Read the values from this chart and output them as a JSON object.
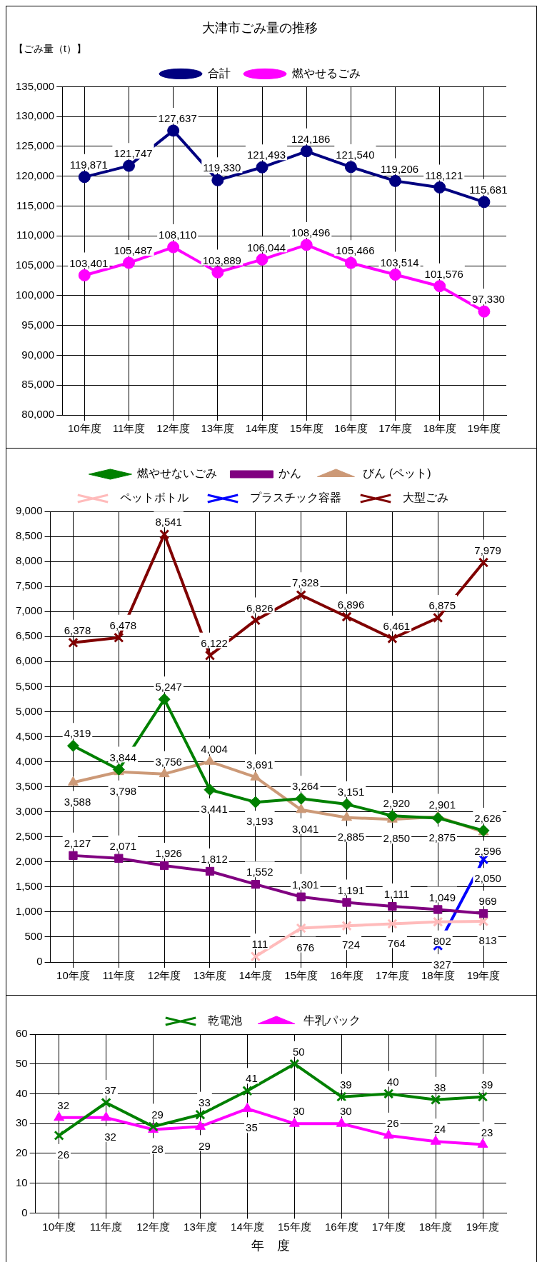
{
  "chart_data": [
    {
      "type": "line",
      "title": "大津市ごみ量の推移",
      "ylabel": "【ごみ量（t）】",
      "categories": [
        "10年度",
        "11年度",
        "12年度",
        "13年度",
        "14年度",
        "15年度",
        "16年度",
        "17年度",
        "18年度",
        "19年度"
      ],
      "series": [
        {
          "name": "合計",
          "color": "#000080",
          "marker": "circle",
          "values": [
            119871,
            121747,
            127637,
            119330,
            121493,
            124186,
            121540,
            119206,
            118121,
            115681
          ],
          "value_labels": [
            "119,871",
            "121,747",
            "127,637",
            "119,330",
            "121,493",
            "124,186",
            "121,540",
            "119,206",
            "118,121",
            "115,681"
          ]
        },
        {
          "name": "燃やせるごみ",
          "color": "#ff00ff",
          "marker": "circle",
          "values": [
            103401,
            105487,
            108110,
            103889,
            106044,
            108496,
            105466,
            103514,
            101576,
            97330
          ],
          "value_labels": [
            "103,401",
            "105,487",
            "108,110",
            "103,889",
            "106,044",
            "108,496",
            "105,466",
            "103,514",
            "101,576",
            "97,330"
          ]
        }
      ],
      "ylim": [
        80000,
        135000
      ],
      "yticks": [
        {
          "value": 80000,
          "label": "80,000"
        },
        {
          "value": 85000,
          "label": "85,000"
        },
        {
          "value": 90000,
          "label": "90,000"
        },
        {
          "value": 95000,
          "label": "95,000"
        },
        {
          "value": 100000,
          "label": "100,000"
        },
        {
          "value": 105000,
          "label": "105,000"
        },
        {
          "value": 110000,
          "label": "110,000"
        },
        {
          "value": 115000,
          "label": "115,000"
        },
        {
          "value": 120000,
          "label": "120,000"
        },
        {
          "value": 125000,
          "label": "125,000"
        },
        {
          "value": 130000,
          "label": "130,000"
        },
        {
          "value": 135000,
          "label": "135,000"
        }
      ],
      "grid": true,
      "legend": "top"
    },
    {
      "type": "line",
      "categories": [
        "10年度",
        "11年度",
        "12年度",
        "13年度",
        "14年度",
        "15年度",
        "16年度",
        "17年度",
        "18年度",
        "19年度"
      ],
      "series": [
        {
          "name": "燃やせないごみ",
          "color": "#008000",
          "marker": "diamond",
          "values": [
            4319,
            3844,
            5247,
            3441,
            3193,
            3264,
            3151,
            2920,
            2875,
            2626
          ],
          "value_labels": [
            "4,319",
            "3,844",
            "5,247",
            "3,441",
            "3,193",
            "3,264",
            "3,151",
            "2,920",
            "2,875",
            "2,626"
          ]
        },
        {
          "name": "かん",
          "color": "#800080",
          "marker": "square",
          "values": [
            2127,
            2071,
            1926,
            1812,
            1552,
            1301,
            1191,
            1111,
            1049,
            969
          ],
          "value_labels": [
            "2,127",
            "2,071",
            "1,926",
            "1,812",
            "1,552",
            "1,301",
            "1,191",
            "1,111",
            "1,049",
            "969"
          ]
        },
        {
          "name": "びん (ペット)",
          "color": "#cc9977",
          "marker": "triangle",
          "values": [
            3588,
            3798,
            3756,
            4004,
            3691,
            3041,
            2885,
            2850,
            2901,
            2596
          ],
          "value_labels": [
            "3,588",
            "3,798",
            "3,756",
            "4,004",
            "3,691",
            "3,041",
            "2,885",
            "2,850",
            "2,901",
            "2,596"
          ]
        },
        {
          "name": "ペットボトル",
          "color": "#ffbbbb",
          "marker": "cross",
          "values": [
            null,
            null,
            null,
            null,
            111,
            676,
            724,
            764,
            802,
            813
          ],
          "value_labels": [
            null,
            null,
            null,
            null,
            "111",
            "676",
            "724",
            "764",
            "802",
            "813"
          ]
        },
        {
          "name": "プラスチック容器",
          "color": "#0000ff",
          "marker": "cross",
          "values": [
            null,
            null,
            null,
            null,
            null,
            null,
            null,
            null,
            327,
            2050
          ],
          "value_labels": [
            null,
            null,
            null,
            null,
            null,
            null,
            null,
            null,
            "327",
            "2,050"
          ]
        },
        {
          "name": "大型ごみ",
          "color": "#800000",
          "marker": "cross",
          "values": [
            6378,
            6478,
            8541,
            6122,
            6826,
            7328,
            6896,
            6461,
            6875,
            7979
          ],
          "value_labels": [
            "6,378",
            "6,478",
            "8,541",
            "6,122",
            "6,826",
            "7,328",
            "6,896",
            "6,461",
            "6,875",
            "7,979"
          ]
        }
      ],
      "ylim": [
        0,
        9000
      ],
      "yticks": [
        0,
        500,
        {
          "value": 1000,
          "label": "1,000"
        },
        {
          "value": 1500,
          "label": "1,500"
        },
        {
          "value": 2000,
          "label": "2,000"
        },
        {
          "value": 2500,
          "label": "2,500"
        },
        {
          "value": 3000,
          "label": "3,000"
        },
        {
          "value": 3500,
          "label": "3,500"
        },
        {
          "value": 4000,
          "label": "4,000"
        },
        {
          "value": 4500,
          "label": "4,500"
        },
        {
          "value": 5000,
          "label": "5,000"
        },
        {
          "value": 5500,
          "label": "5,500"
        },
        {
          "value": 6000,
          "label": "6,000"
        },
        {
          "value": 6500,
          "label": "6,500"
        },
        {
          "value": 7000,
          "label": "7,000"
        },
        {
          "value": 7500,
          "label": "7,500"
        },
        {
          "value": 8000,
          "label": "8,000"
        },
        {
          "value": 8500,
          "label": "8,500"
        },
        {
          "value": 9000,
          "label": "9,000"
        }
      ],
      "grid": true,
      "legend": "top"
    },
    {
      "type": "line",
      "xlabel": "年　度",
      "categories": [
        "10年度",
        "11年度",
        "12年度",
        "13年度",
        "14年度",
        "15年度",
        "16年度",
        "17年度",
        "18年度",
        "19年度"
      ],
      "series": [
        {
          "name": "乾電池",
          "color": "#008000",
          "marker": "cross",
          "values": [
            26,
            37,
            29,
            33,
            41,
            50,
            39,
            40,
            38,
            39
          ]
        },
        {
          "name": "牛乳パック",
          "color": "#ff00ff",
          "marker": "triangle",
          "values": [
            32,
            32,
            28,
            29,
            35,
            30,
            30,
            26,
            24,
            23
          ]
        }
      ],
      "ylim": [
        0,
        60
      ],
      "yticks": [
        0,
        10,
        20,
        30,
        40,
        50,
        60
      ],
      "grid": true,
      "legend": "top",
      "data_labels": true
    }
  ]
}
